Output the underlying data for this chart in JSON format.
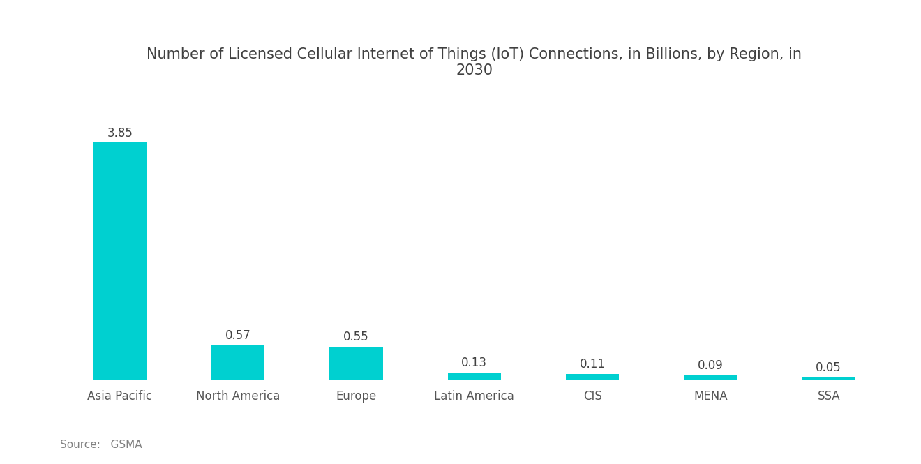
{
  "title": "Number of Licensed Cellular Internet of Things (IoT) Connections, in Billions, by Region, in\n2030",
  "categories": [
    "Asia Pacific",
    "North America",
    "Europe",
    "Latin America",
    "CIS",
    "MENA",
    "SSA"
  ],
  "values": [
    3.85,
    0.57,
    0.55,
    0.13,
    0.11,
    0.09,
    0.05
  ],
  "bar_color": "#00D0D0",
  "background_color": "#ffffff",
  "source_text": "Source:   GSMA",
  "title_fontsize": 15,
  "label_fontsize": 12,
  "value_fontsize": 12,
  "source_fontsize": 11,
  "title_color": "#404040",
  "label_color": "#555555",
  "value_color": "#404040",
  "source_color": "#808080",
  "ylim": [
    0,
    4.5
  ]
}
